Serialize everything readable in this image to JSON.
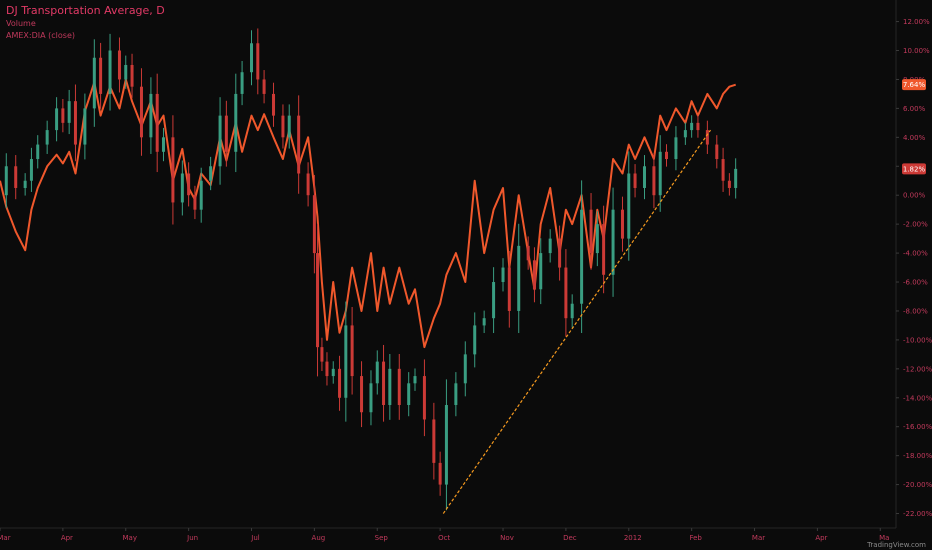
{
  "legend": {
    "title": "DJ Transportation Average, D",
    "volume_label": "Volume",
    "compare_label": "AMEX:DIA (close)"
  },
  "branding": "TradingView.com",
  "colors": {
    "background": "#0b0b0b",
    "up_candle": "#3a9e82",
    "down_candle": "#cc3a36",
    "compare_line": "#f0582c",
    "trendline": "#f59a1f",
    "axis_text": "#c23a5c"
  },
  "chart_data": {
    "type": "line",
    "xlabel": "",
    "ylabel": "",
    "ylim": [
      -23,
      12.8
    ],
    "y_ticks": [
      12,
      10,
      8,
      6,
      4,
      2,
      0,
      -2,
      -4,
      -6,
      -8,
      -10,
      -12,
      -14,
      -16,
      -18,
      -20,
      -22
    ],
    "y_tick_labels": [
      "12.00%",
      "10.00%",
      "8.00%",
      "6.00%",
      "4.00%",
      "2.00%",
      "0.00%",
      "-2.00%",
      "-4.00%",
      "-6.00%",
      "-8.00%",
      "-10.00%",
      "-12.00%",
      "-14.00%",
      "-16.00%",
      "-18.00%",
      "-20.00%",
      "-22.00%"
    ],
    "x_labels": [
      "Mar",
      "Apr",
      "May",
      "Jun",
      "Jul",
      "Aug",
      "Sep",
      "Oct",
      "Nov",
      "Dec",
      "2012",
      "Feb",
      "Mar",
      "Apr",
      "Ma"
    ],
    "x_label_positions": [
      0,
      1,
      2,
      3,
      4,
      5,
      6,
      7,
      8,
      9,
      10,
      11,
      12,
      13,
      14
    ],
    "x_start": 0,
    "x_end": 14.25,
    "series": [
      {
        "name": "AMEX:DIA (close)",
        "kind": "line",
        "x": [
          0.0,
          0.1,
          0.25,
          0.4,
          0.5,
          0.6,
          0.75,
          0.9,
          1.0,
          1.1,
          1.2,
          1.35,
          1.5,
          1.6,
          1.75,
          1.9,
          2.0,
          2.1,
          2.25,
          2.4,
          2.5,
          2.6,
          2.75,
          2.9,
          3.0,
          3.1,
          3.2,
          3.35,
          3.5,
          3.6,
          3.75,
          3.85,
          4.0,
          4.1,
          4.2,
          4.35,
          4.5,
          4.6,
          4.75,
          4.9,
          5.0,
          5.05,
          5.12,
          5.2,
          5.3,
          5.4,
          5.5,
          5.6,
          5.75,
          5.9,
          6.0,
          6.1,
          6.2,
          6.35,
          6.5,
          6.6,
          6.75,
          6.9,
          7.0,
          7.1,
          7.25,
          7.4,
          7.55,
          7.7,
          7.85,
          8.0,
          8.1,
          8.25,
          8.4,
          8.5,
          8.6,
          8.75,
          8.9,
          9.0,
          9.1,
          9.25,
          9.4,
          9.5,
          9.6,
          9.75,
          9.9,
          10.0,
          10.1,
          10.25,
          10.4,
          10.5,
          10.6,
          10.75,
          10.9,
          11.0,
          11.1,
          11.25,
          11.4,
          11.5,
          11.6,
          11.7
        ],
        "y": [
          1.0,
          -0.8,
          -2.5,
          -3.8,
          -1.0,
          0.5,
          2.0,
          2.8,
          2.2,
          3.0,
          1.5,
          5.8,
          7.8,
          5.5,
          7.5,
          6.0,
          8.0,
          6.5,
          4.8,
          6.5,
          4.8,
          5.5,
          1.0,
          3.2,
          0.5,
          -0.3,
          1.5,
          0.7,
          4.0,
          2.4,
          5.0,
          3.0,
          5.5,
          4.5,
          5.6,
          4.0,
          2.5,
          4.5,
          2.0,
          4.0,
          0.5,
          -1.5,
          -6.0,
          -10.0,
          -6.0,
          -9.5,
          -8.0,
          -5.0,
          -8.0,
          -4.0,
          -8.0,
          -5.0,
          -7.5,
          -5.0,
          -7.5,
          -6.5,
          -10.5,
          -8.5,
          -7.5,
          -5.5,
          -4.0,
          -6.0,
          1.0,
          -4.0,
          -1.0,
          0.5,
          -5.0,
          0.0,
          -4.0,
          -6.5,
          -2.0,
          0.5,
          -4.0,
          -1.0,
          -2.0,
          0.0,
          -5.0,
          -1.0,
          -3.0,
          2.5,
          1.5,
          3.5,
          2.5,
          4.0,
          2.5,
          5.5,
          4.5,
          6.0,
          5.0,
          6.5,
          5.5,
          7.0,
          6.0,
          7.0,
          7.5,
          7.64
        ]
      },
      {
        "name": "DJ Transportation Average",
        "kind": "candlestick",
        "x": [
          0.0,
          0.1,
          0.25,
          0.4,
          0.5,
          0.6,
          0.75,
          0.9,
          1.0,
          1.1,
          1.2,
          1.35,
          1.5,
          1.6,
          1.75,
          1.9,
          2.0,
          2.1,
          2.25,
          2.4,
          2.5,
          2.6,
          2.75,
          2.9,
          3.0,
          3.1,
          3.2,
          3.35,
          3.5,
          3.6,
          3.75,
          3.85,
          4.0,
          4.1,
          4.2,
          4.35,
          4.5,
          4.6,
          4.75,
          4.9,
          5.0,
          5.05,
          5.12,
          5.2,
          5.3,
          5.4,
          5.5,
          5.6,
          5.75,
          5.9,
          6.0,
          6.1,
          6.2,
          6.35,
          6.5,
          6.6,
          6.75,
          6.9,
          7.0,
          7.1,
          7.25,
          7.4,
          7.55,
          7.7,
          7.85,
          8.0,
          8.1,
          8.25,
          8.4,
          8.5,
          8.6,
          8.75,
          8.9,
          9.0,
          9.1,
          9.25,
          9.4,
          9.5,
          9.6,
          9.75,
          9.9,
          10.0,
          10.1,
          10.25,
          10.4,
          10.5,
          10.6,
          10.75,
          10.9,
          11.0,
          11.1,
          11.25,
          11.4,
          11.5,
          11.6,
          11.7
        ],
        "y": [
          0.0,
          2.0,
          0.5,
          1.0,
          2.5,
          3.5,
          4.5,
          6.0,
          5.0,
          6.5,
          3.5,
          6.0,
          9.5,
          7.0,
          10.0,
          8.0,
          9.0,
          7.5,
          4.0,
          7.0,
          3.0,
          4.0,
          -0.5,
          1.5,
          0.0,
          -1.0,
          1.0,
          2.0,
          5.5,
          3.0,
          7.0,
          8.5,
          10.5,
          8.0,
          7.0,
          5.5,
          4.0,
          5.5,
          1.5,
          0.0,
          -4.0,
          -10.5,
          -11.5,
          -12.5,
          -12.0,
          -14.0,
          -9.0,
          -12.5,
          -15.0,
          -13.0,
          -11.5,
          -14.5,
          -12.0,
          -14.5,
          -13.0,
          -12.5,
          -15.5,
          -18.5,
          -20.0,
          -14.5,
          -13.0,
          -11.0,
          -9.0,
          -8.5,
          -6.0,
          -5.0,
          -8.0,
          -3.5,
          -4.5,
          -6.5,
          -4.0,
          -3.0,
          -5.0,
          -8.5,
          -7.5,
          -1.0,
          -4.0,
          -2.0,
          -5.5,
          -1.0,
          -3.0,
          1.5,
          0.5,
          2.0,
          0.0,
          3.0,
          2.5,
          4.0,
          4.5,
          5.0,
          4.5,
          3.5,
          2.5,
          1.0,
          0.5,
          1.82
        ]
      },
      {
        "name": "trendline",
        "kind": "dashed-line",
        "x": [
          7.05,
          11.3
        ],
        "y": [
          -22.0,
          4.5
        ]
      }
    ],
    "last_value_badges": [
      {
        "series": "AMEX:DIA (close)",
        "value": 7.64,
        "label": "7.64%",
        "color": "#f0582c"
      },
      {
        "series": "DJ Transportation Average",
        "value": 1.82,
        "label": "1.82%",
        "color": "#cc3a36"
      }
    ],
    "grid": false,
    "legend_position": "top-left"
  }
}
